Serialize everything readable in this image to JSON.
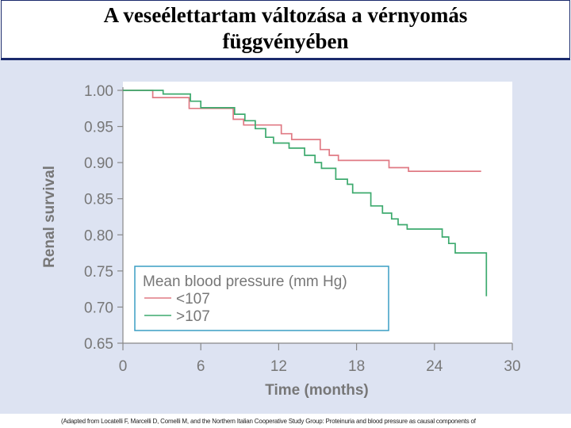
{
  "slide": {
    "title_line1": "A veseélettartam változása a vérnyomás",
    "title_line2": "függvényében",
    "footer": "(Adapted from Locatelli F, Marcelli D, Comelli M, and the Northern Italian Cooperative Study Group: Proteinuria and blood pressure as causal components of"
  },
  "colors": {
    "low_bp": "#e07a84",
    "high_bp": "#3daa6e",
    "axis": "#888888",
    "legend_border": "#3a9ec4"
  },
  "chart_data": {
    "type": "line",
    "title": "",
    "xlabel": "Time (months)",
    "ylabel": "Renal survival",
    "xlim": [
      0,
      30
    ],
    "ylim": [
      0.65,
      1.0
    ],
    "xticks": [
      0,
      6,
      12,
      18,
      24,
      30
    ],
    "yticks": [
      1.0,
      0.95,
      0.9,
      0.85,
      0.8,
      0.75,
      0.7,
      0.65
    ],
    "xtick_labels": [
      "0",
      "6",
      "12",
      "18",
      "24",
      "30"
    ],
    "ytick_labels": [
      "1.00",
      "0.95",
      "0.90",
      "0.85",
      "0.80",
      "0.75",
      "0.70",
      "0.65"
    ],
    "legend_title": "Mean blood pressure (mm Hg)",
    "legend_position": "bottom-center",
    "series": [
      {
        "name": "<107",
        "step": true,
        "points": [
          [
            0,
            1.0
          ],
          [
            2.3,
            1.0
          ],
          [
            2.3,
            0.99
          ],
          [
            5.1,
            0.99
          ],
          [
            5.1,
            0.975
          ],
          [
            8.5,
            0.975
          ],
          [
            8.5,
            0.96
          ],
          [
            9.3,
            0.96
          ],
          [
            9.3,
            0.952
          ],
          [
            12.2,
            0.952
          ],
          [
            12.2,
            0.94
          ],
          [
            13.0,
            0.94
          ],
          [
            13.0,
            0.932
          ],
          [
            15.2,
            0.932
          ],
          [
            15.2,
            0.918
          ],
          [
            15.9,
            0.918
          ],
          [
            15.9,
            0.91
          ],
          [
            16.6,
            0.91
          ],
          [
            16.6,
            0.903
          ],
          [
            20.5,
            0.903
          ],
          [
            20.5,
            0.893
          ],
          [
            22.0,
            0.893
          ],
          [
            22.0,
            0.888
          ],
          [
            27.6,
            0.888
          ]
        ]
      },
      {
        "name": ">107",
        "step": true,
        "points": [
          [
            0,
            1.0
          ],
          [
            3.1,
            1.0
          ],
          [
            3.1,
            0.995
          ],
          [
            5.2,
            0.995
          ],
          [
            5.2,
            0.985
          ],
          [
            6.0,
            0.985
          ],
          [
            6.0,
            0.976
          ],
          [
            8.6,
            0.976
          ],
          [
            8.6,
            0.967
          ],
          [
            9.4,
            0.967
          ],
          [
            9.4,
            0.958
          ],
          [
            10.2,
            0.958
          ],
          [
            10.2,
            0.947
          ],
          [
            11.0,
            0.947
          ],
          [
            11.0,
            0.935
          ],
          [
            11.6,
            0.935
          ],
          [
            11.6,
            0.927
          ],
          [
            12.8,
            0.927
          ],
          [
            12.8,
            0.92
          ],
          [
            14.0,
            0.92
          ],
          [
            14.0,
            0.91
          ],
          [
            14.8,
            0.91
          ],
          [
            14.8,
            0.9
          ],
          [
            15.3,
            0.9
          ],
          [
            15.3,
            0.892
          ],
          [
            16.4,
            0.892
          ],
          [
            16.4,
            0.877
          ],
          [
            17.3,
            0.877
          ],
          [
            17.3,
            0.87
          ],
          [
            17.7,
            0.87
          ],
          [
            17.7,
            0.858
          ],
          [
            19.1,
            0.858
          ],
          [
            19.1,
            0.84
          ],
          [
            20.0,
            0.84
          ],
          [
            20.0,
            0.83
          ],
          [
            20.7,
            0.83
          ],
          [
            20.7,
            0.822
          ],
          [
            21.2,
            0.822
          ],
          [
            21.2,
            0.814
          ],
          [
            21.9,
            0.814
          ],
          [
            21.9,
            0.808
          ],
          [
            24.6,
            0.808
          ],
          [
            24.6,
            0.797
          ],
          [
            25.1,
            0.797
          ],
          [
            25.1,
            0.788
          ],
          [
            25.6,
            0.788
          ],
          [
            25.6,
            0.775
          ],
          [
            28.0,
            0.775
          ],
          [
            28.0,
            0.715
          ]
        ]
      }
    ]
  }
}
